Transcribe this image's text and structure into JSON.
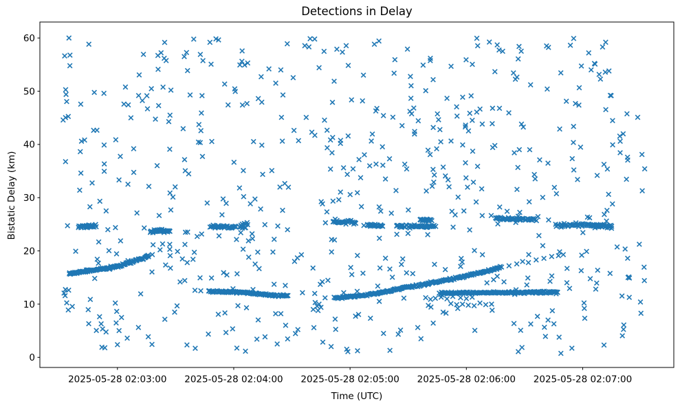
{
  "figure": {
    "background": "#ffffff",
    "spine_color": "#000000",
    "text_color": "#000000"
  },
  "chart_data": {
    "type": "scatter",
    "title": "Detections in Delay",
    "xlabel": "Time (UTC)",
    "ylabel": "Bistatic Delay (km)",
    "marker": {
      "style": "x",
      "color": "#1f77b4",
      "size": 6.6,
      "stroke_width": 1.6
    },
    "x_axis": {
      "unit": "seconds after 2025-05-28 02:02:00 UTC",
      "range": [
        20,
        347
      ],
      "ticks": [
        {
          "t": 60,
          "label": "2025-05-28 02:03:00"
        },
        {
          "t": 120,
          "label": "2025-05-28 02:04:00"
        },
        {
          "t": 180,
          "label": "2025-05-28 02:05:00"
        },
        {
          "t": 240,
          "label": "2025-05-28 02:06:00"
        },
        {
          "t": 300,
          "label": "2025-05-28 02:07:00"
        }
      ]
    },
    "y_axis": {
      "range": [
        -1.9,
        63.0
      ],
      "ticks": [
        0,
        10,
        20,
        30,
        40,
        50,
        60
      ]
    },
    "tracks": [
      {
        "name": "rising-track-1",
        "polyline": [
          [
            35,
            15.7
          ],
          [
            60,
            17.1
          ],
          [
            70,
            18.2
          ],
          [
            76,
            19.0
          ]
        ],
        "count": 115,
        "jitter": 0.16
      },
      {
        "name": "falling-track-1",
        "polyline": [
          [
            107,
            12.45
          ],
          [
            125,
            12.2
          ],
          [
            148,
            11.5
          ]
        ],
        "count": 115,
        "jitter": 0.14
      },
      {
        "name": "rising-track-2",
        "polyline": [
          [
            172,
            11.15
          ],
          [
            190,
            11.75
          ],
          [
            212,
            13.3
          ],
          [
            233,
            14.75
          ],
          [
            247,
            15.9
          ],
          [
            258,
            16.9
          ]
        ],
        "count": 210,
        "jitter": 0.15
      },
      {
        "name": "flat-track-12km",
        "polyline": [
          [
            226,
            12.05
          ],
          [
            258,
            12.15
          ],
          [
            287,
            12.25
          ]
        ],
        "count": 150,
        "jitter": 0.13
      },
      {
        "name": "band-24km-seg1",
        "polyline": [
          [
            40,
            24.6
          ],
          [
            49,
            24.7
          ]
        ],
        "count": 26,
        "jitter": 0.2
      },
      {
        "name": "band-24km-seg2",
        "polyline": [
          [
            77,
            23.6
          ],
          [
            87,
            23.8
          ]
        ],
        "count": 30,
        "jitter": 0.25
      },
      {
        "name": "band-24km-seg3",
        "polyline": [
          [
            108,
            24.6
          ],
          [
            121,
            24.5
          ]
        ],
        "count": 32,
        "jitter": 0.2
      },
      {
        "name": "band-24km-seg4",
        "polyline": [
          [
            123,
            24.4
          ],
          [
            127,
            24.9
          ]
        ],
        "count": 14,
        "jitter": 0.45
      },
      {
        "name": "band-25km-seg5",
        "polyline": [
          [
            171,
            25.5
          ],
          [
            183,
            25.3
          ]
        ],
        "count": 30,
        "jitter": 0.25
      },
      {
        "name": "band-25km-seg6",
        "polyline": [
          [
            189,
            24.9
          ],
          [
            197,
            24.7
          ]
        ],
        "count": 22,
        "jitter": 0.2
      },
      {
        "name": "band-24km-seg7",
        "polyline": [
          [
            204,
            24.6
          ],
          [
            224,
            24.6
          ]
        ],
        "count": 48,
        "jitter": 0.2
      },
      {
        "name": "band-26km-seg8",
        "polyline": [
          [
            216,
            25.9
          ],
          [
            222,
            25.8
          ]
        ],
        "count": 18,
        "jitter": 0.2
      },
      {
        "name": "band-26km-seg9",
        "polyline": [
          [
            255,
            26.1
          ],
          [
            276,
            25.9
          ]
        ],
        "count": 52,
        "jitter": 0.18
      },
      {
        "name": "band-25km-seg10",
        "polyline": [
          [
            286,
            24.9
          ],
          [
            309,
            24.8
          ]
        ],
        "count": 45,
        "jitter": 0.2
      },
      {
        "name": "band-25km-seg10b",
        "polyline": [
          [
            305,
            24.7
          ],
          [
            315,
            24.6
          ]
        ],
        "count": 30,
        "jitter": 0.25
      }
    ],
    "extra_points": [
      [
        78,
        19.3
      ],
      [
        82,
        20.2
      ],
      [
        87,
        20.3
      ],
      [
        91,
        19.9
      ],
      [
        93.5,
        18.5
      ],
      [
        96,
        17.8
      ],
      [
        100,
        12.6
      ],
      [
        103,
        12.5
      ],
      [
        161,
        9.0
      ],
      [
        162,
        10.3
      ],
      [
        163,
        9.6
      ],
      [
        164,
        10.0
      ],
      [
        163.5,
        8.8
      ],
      [
        165,
        9.4
      ],
      [
        219,
        11.2
      ],
      [
        221.5,
        10.9
      ],
      [
        224,
        11.1
      ],
      [
        227,
        11.3
      ],
      [
        230,
        11.0
      ],
      [
        233,
        11.45
      ],
      [
        237,
        11.2
      ],
      [
        240,
        11.05
      ],
      [
        243,
        11.3
      ],
      [
        228,
        8.5
      ],
      [
        229.5,
        8.3
      ],
      [
        232,
        10.1
      ],
      [
        235,
        9.9
      ],
      [
        238,
        10.0
      ],
      [
        241,
        9.8
      ],
      [
        244,
        9.7
      ],
      [
        247,
        10.2
      ],
      [
        250,
        9.9
      ],
      [
        253,
        10.0
      ],
      [
        262,
        17.2
      ],
      [
        266,
        17.55
      ],
      [
        269,
        18.0
      ],
      [
        272,
        17.8
      ],
      [
        276,
        18.3
      ],
      [
        280,
        18.6
      ],
      [
        284,
        18.95
      ],
      [
        287.5,
        19.1
      ],
      [
        290,
        19.3
      ],
      [
        323.4,
        15.0
      ],
      [
        323.8,
        15.1
      ],
      [
        324.1,
        14.9
      ],
      [
        52,
        1.9
      ],
      [
        53.5,
        1.8
      ],
      [
        35,
        60.0
      ],
      [
        33.5,
        49.4
      ]
    ],
    "clutter": {
      "count": 600,
      "t_range": [
        31,
        332
      ],
      "y_range": [
        0.7,
        60.0
      ]
    }
  }
}
